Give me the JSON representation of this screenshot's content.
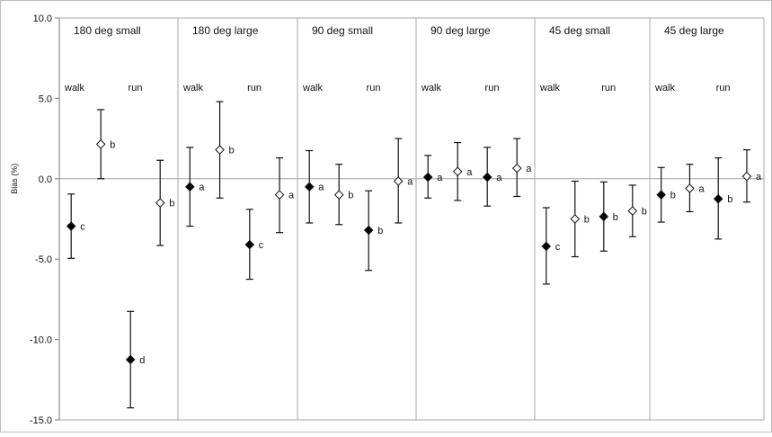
{
  "chart_data": {
    "type": "scatter",
    "ylabel": "Bias (%)",
    "ylim": [
      -15,
      10
    ],
    "yticks": [
      "10.0",
      "5.0",
      "0.0",
      "-5.0",
      "-10.0",
      "-15.0"
    ],
    "ytick_values": [
      10,
      5,
      0,
      -5,
      -10,
      -15
    ],
    "grid": false,
    "marker_colors": {
      "filled": "#000000",
      "open": "#ffffff"
    },
    "panels": [
      {
        "title": "180 deg small",
        "walk_label": "walk",
        "run_label": "run",
        "points": [
          {
            "y": -2.95,
            "low": -4.95,
            "high": -0.95,
            "filled": true,
            "letter": "c"
          },
          {
            "y": 2.15,
            "low": 0.0,
            "high": 4.3,
            "filled": false,
            "letter": "b"
          },
          {
            "y": -11.25,
            "low": -14.25,
            "high": -8.25,
            "filled": true,
            "letter": "d"
          },
          {
            "y": -1.5,
            "low": -4.15,
            "high": 1.15,
            "filled": false,
            "letter": "b"
          }
        ]
      },
      {
        "title": "180 deg large",
        "walk_label": "walk",
        "run_label": "run",
        "points": [
          {
            "y": -0.5,
            "low": -2.95,
            "high": 1.95,
            "filled": true,
            "letter": "a"
          },
          {
            "y": 1.8,
            "low": -1.2,
            "high": 4.8,
            "filled": false,
            "letter": "b"
          },
          {
            "y": -4.1,
            "low": -6.25,
            "high": -1.9,
            "filled": true,
            "letter": "c"
          },
          {
            "y": -1.0,
            "low": -3.35,
            "high": 1.3,
            "filled": false,
            "letter": "a"
          }
        ]
      },
      {
        "title": "90 deg small",
        "walk_label": "walk",
        "run_label": "run",
        "points": [
          {
            "y": -0.5,
            "low": -2.75,
            "high": 1.75,
            "filled": true,
            "letter": "a"
          },
          {
            "y": -1.0,
            "low": -2.85,
            "high": 0.9,
            "filled": false,
            "letter": "b"
          },
          {
            "y": -3.2,
            "low": -5.7,
            "high": -0.75,
            "filled": true,
            "letter": "b"
          },
          {
            "y": -0.15,
            "low": -2.75,
            "high": 2.5,
            "filled": false,
            "letter": "a"
          }
        ]
      },
      {
        "title": "90 deg large",
        "walk_label": "walk",
        "run_label": "run",
        "points": [
          {
            "y": 0.1,
            "low": -1.2,
            "high": 1.45,
            "filled": true,
            "letter": "a"
          },
          {
            "y": 0.45,
            "low": -1.35,
            "high": 2.25,
            "filled": false,
            "letter": "a"
          },
          {
            "y": 0.1,
            "low": -1.7,
            "high": 1.95,
            "filled": true,
            "letter": "a"
          },
          {
            "y": 0.65,
            "low": -1.1,
            "high": 2.5,
            "filled": false,
            "letter": "a"
          }
        ]
      },
      {
        "title": "45 deg small",
        "walk_label": "walk",
        "run_label": "run",
        "points": [
          {
            "y": -4.2,
            "low": -6.55,
            "high": -1.8,
            "filled": true,
            "letter": "c"
          },
          {
            "y": -2.5,
            "low": -4.85,
            "high": -0.15,
            "filled": false,
            "letter": "b"
          },
          {
            "y": -2.35,
            "low": -4.5,
            "high": -0.2,
            "filled": true,
            "letter": "b"
          },
          {
            "y": -2.0,
            "low": -3.6,
            "high": -0.4,
            "filled": false,
            "letter": "b"
          }
        ]
      },
      {
        "title": "45 deg large",
        "walk_label": "walk",
        "run_label": "run",
        "points": [
          {
            "y": -1.0,
            "low": -2.7,
            "high": 0.7,
            "filled": true,
            "letter": "b"
          },
          {
            "y": -0.6,
            "low": -2.05,
            "high": 0.9,
            "filled": false,
            "letter": "a"
          },
          {
            "y": -1.25,
            "low": -3.75,
            "high": 1.3,
            "filled": true,
            "letter": "b"
          },
          {
            "y": 0.15,
            "low": -1.45,
            "high": 1.8,
            "filled": false,
            "letter": "a"
          }
        ]
      }
    ]
  }
}
